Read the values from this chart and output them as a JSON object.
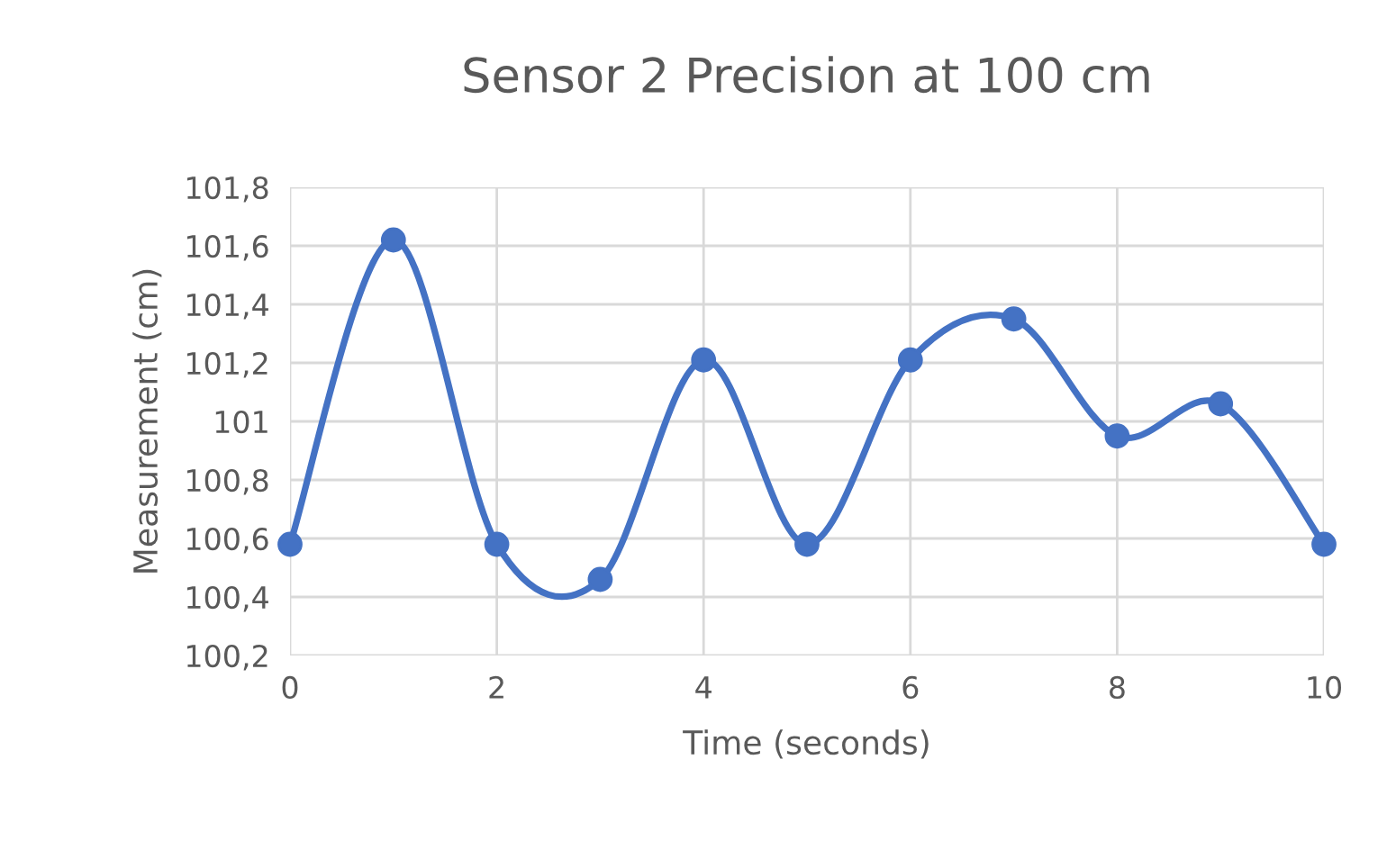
{
  "chart_data": {
    "type": "line",
    "title": "Sensor 2 Precision at 100 cm",
    "xlabel": "Time (seconds)",
    "ylabel": "Measurement (cm)",
    "x": [
      0,
      1,
      2,
      3,
      4,
      5,
      6,
      7,
      8,
      9,
      10
    ],
    "series": [
      {
        "color": "#4472c4",
        "values": [
          100.58,
          101.62,
          100.58,
          100.46,
          101.21,
          100.58,
          101.21,
          101.35,
          100.95,
          101.06,
          100.58
        ]
      }
    ],
    "xlim": [
      0,
      10
    ],
    "xticks": [
      0,
      2,
      4,
      6,
      8,
      10
    ],
    "ylim": [
      100.2,
      101.8
    ],
    "yticks": [
      {
        "value": 100.2,
        "label": "100,2"
      },
      {
        "value": 100.4,
        "label": "100,4"
      },
      {
        "value": 100.6,
        "label": "100,6"
      },
      {
        "value": 100.8,
        "label": "100,8"
      },
      {
        "value": 101,
        "label": "101"
      },
      {
        "value": 101.2,
        "label": "101,2"
      },
      {
        "value": 101.4,
        "label": "101,4"
      },
      {
        "value": 101.6,
        "label": "101,6"
      },
      {
        "value": 101.8,
        "label": "101,8"
      }
    ],
    "grid": true,
    "marker": "circle",
    "line_style": "solid"
  }
}
